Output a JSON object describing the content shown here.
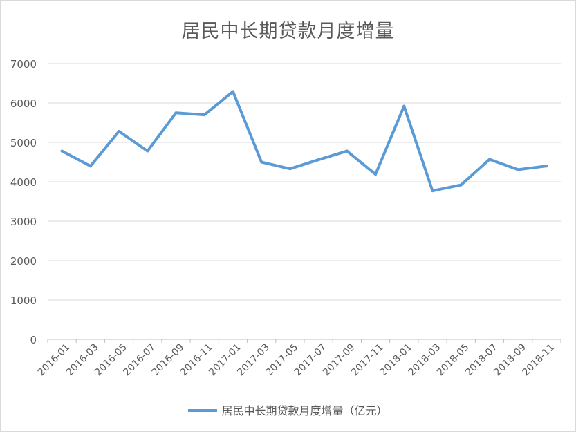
{
  "chart_data": {
    "type": "line",
    "title": "居民中长期贷款月度增量",
    "xlabel": "",
    "ylabel": "",
    "x": [
      "2016-01",
      "2016-03",
      "2016-05",
      "2016-07",
      "2016-09",
      "2016-11",
      "2017-01",
      "2017-03",
      "2017-05",
      "2017-07",
      "2017-09",
      "2017-11",
      "2018-01",
      "2018-03",
      "2018-05",
      "2018-07",
      "2018-09",
      "2018-11"
    ],
    "tick_labels": [
      "2016-01",
      "2016-03",
      "2016-05",
      "2016-07",
      "2016-09",
      "2016-11",
      "2017-01",
      "2017-03",
      "2017-05",
      "2017-07",
      "2017-09",
      "2017-11",
      "2018-01",
      "2018-03",
      "2018-05",
      "2018-07",
      "2018-09",
      "2018-11"
    ],
    "series": [
      {
        "name": "居民中长期贷款月度增量（亿元）",
        "color": "#5b9bd5",
        "values": [
          4780,
          4400,
          5280,
          4780,
          5750,
          5700,
          6290,
          4500,
          4330,
          4560,
          4780,
          4190,
          5920,
          3770,
          3920,
          4570,
          4310,
          4400
        ]
      }
    ],
    "ylim": [
      0,
      7000
    ],
    "yticks": [
      0,
      1000,
      2000,
      3000,
      4000,
      5000,
      6000,
      7000
    ],
    "grid": true,
    "legend_position": "bottom"
  }
}
